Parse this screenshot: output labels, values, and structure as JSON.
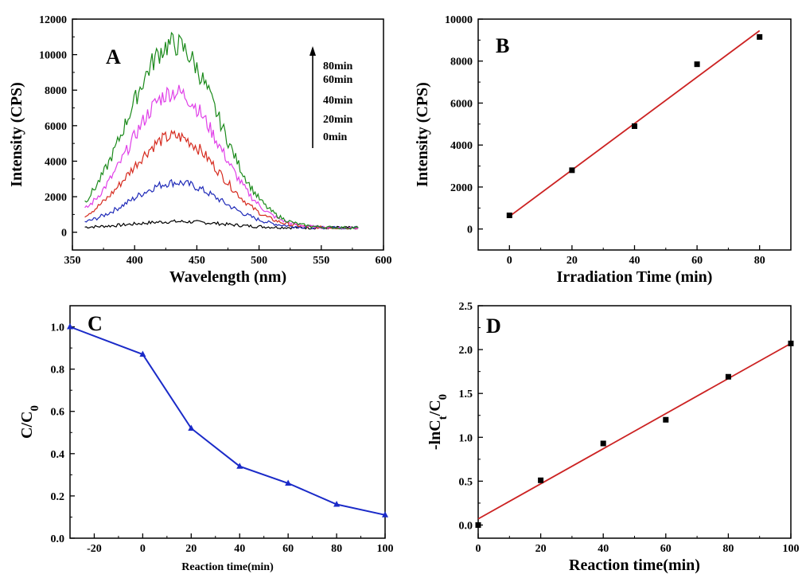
{
  "chart_data": [
    {
      "panel": "A",
      "type": "line",
      "xlabel": "Wavelength (nm)",
      "ylabel": "Intensity (CPS)",
      "xlim": [
        350,
        600
      ],
      "ylim": [
        -1000,
        12000
      ],
      "xticks": [
        350,
        400,
        450,
        500,
        550,
        600
      ],
      "yticks": [
        0,
        2000,
        4000,
        6000,
        8000,
        10000,
        12000
      ],
      "x_range": [
        360,
        580
      ],
      "annotations": [
        "80min",
        "60min",
        "40min",
        "20min",
        "0min"
      ],
      "series": [
        {
          "name": "0min",
          "color": "#000000",
          "peak_x": 435,
          "peak_y": 600,
          "baseline": 250
        },
        {
          "name": "20min",
          "color": "#1f2ab8",
          "peak_x": 433,
          "peak_y": 2800,
          "baseline": 250
        },
        {
          "name": "40min",
          "color": "#d62b1f",
          "peak_x": 432,
          "peak_y": 5400,
          "baseline": 250
        },
        {
          "name": "60min",
          "color": "#e040e8",
          "peak_x": 432,
          "peak_y": 7900,
          "baseline": 250
        },
        {
          "name": "80min",
          "color": "#1b8a1b",
          "peak_x": 431,
          "peak_y": 10600,
          "baseline": 250
        }
      ]
    },
    {
      "panel": "B",
      "type": "scatter",
      "xlabel": "Irradiation Time (min)",
      "ylabel": "Intensity (CPS)",
      "xlim": [
        -10,
        90
      ],
      "ylim": [
        -1000,
        10000
      ],
      "xticks": [
        0,
        20,
        40,
        60,
        80
      ],
      "yticks": [
        0,
        2000,
        4000,
        6000,
        8000,
        10000
      ],
      "x": [
        0,
        20,
        40,
        60,
        80
      ],
      "y": [
        650,
        2800,
        4900,
        7850,
        9150
      ],
      "fit": {
        "x": [
          0,
          80
        ],
        "y": [
          600,
          9450
        ],
        "color": "#cc2222"
      }
    },
    {
      "panel": "C",
      "type": "line",
      "xlabel": "Reaction time(min)",
      "ylabel": "C/C0",
      "xlim": [
        -30,
        100
      ],
      "ylim": [
        0.0,
        1.1
      ],
      "xticks": [
        -20,
        0,
        20,
        40,
        60,
        80,
        100
      ],
      "yticks": [
        0.0,
        0.2,
        0.4,
        0.6,
        0.8,
        1.0
      ],
      "x": [
        -30,
        0,
        20,
        40,
        60,
        80,
        100
      ],
      "y": [
        1.0,
        0.87,
        0.52,
        0.34,
        0.26,
        0.16,
        0.11
      ],
      "color": "#1a2ac8"
    },
    {
      "panel": "D",
      "type": "scatter",
      "xlabel": "Reaction time(min)",
      "ylabel": "-lnCt/C0",
      "xlim": [
        0,
        100
      ],
      "ylim": [
        -0.15,
        2.5
      ],
      "xticks": [
        0,
        20,
        40,
        60,
        80,
        100
      ],
      "yticks": [
        0.0,
        0.5,
        1.0,
        1.5,
        2.0,
        2.5
      ],
      "x": [
        0,
        20,
        40,
        60,
        80,
        100
      ],
      "y": [
        0.0,
        0.51,
        0.93,
        1.2,
        1.69,
        2.07
      ],
      "fit": {
        "x": [
          0,
          100
        ],
        "y": [
          0.07,
          2.07
        ],
        "color": "#cc2222"
      }
    }
  ]
}
